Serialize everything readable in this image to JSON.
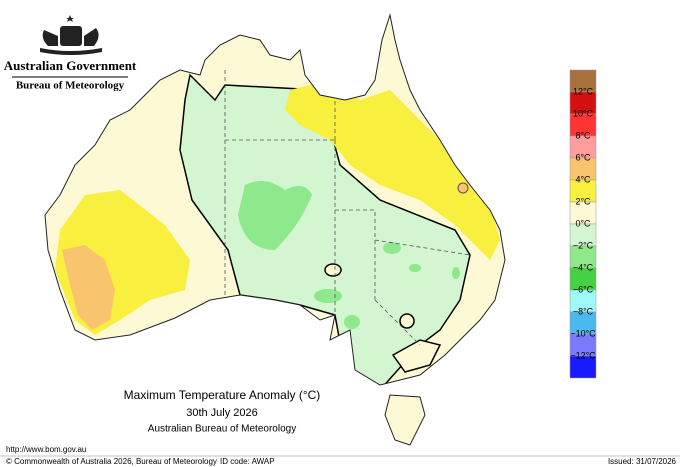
{
  "header": {
    "government": "Australian Government",
    "agency": "Bureau of Meteorology"
  },
  "map": {
    "title": "Maximum Temperature Anomaly (°C)",
    "date": "30th July 2026",
    "source": "Australian Bureau of Meteorology"
  },
  "legend": {
    "colors": [
      "#a8703c",
      "#d41010",
      "#ff3434",
      "#ff9c9c",
      "#f8c46e",
      "#f8ef3e",
      "#fdf9d4",
      "#d3f5cf",
      "#8de98b",
      "#44d244",
      "#9ef8f8",
      "#4cb8f0",
      "#7a7aff",
      "#1a1aff"
    ],
    "labels": [
      "12°C",
      "10°C",
      "8°C",
      "6°C",
      "4°C",
      "2°C",
      "0°C",
      "−2°C",
      "−4°C",
      "−6°C",
      "−8°C",
      "−10°C",
      "−12°C"
    ]
  },
  "footer": {
    "url": "http://www.bom.gov.au",
    "copyright": "© Commonwealth of Australia 2026, Bureau of Meteorology",
    "id_code": "ID code: AWAP",
    "issued": "Issued: 31/07/2026"
  }
}
